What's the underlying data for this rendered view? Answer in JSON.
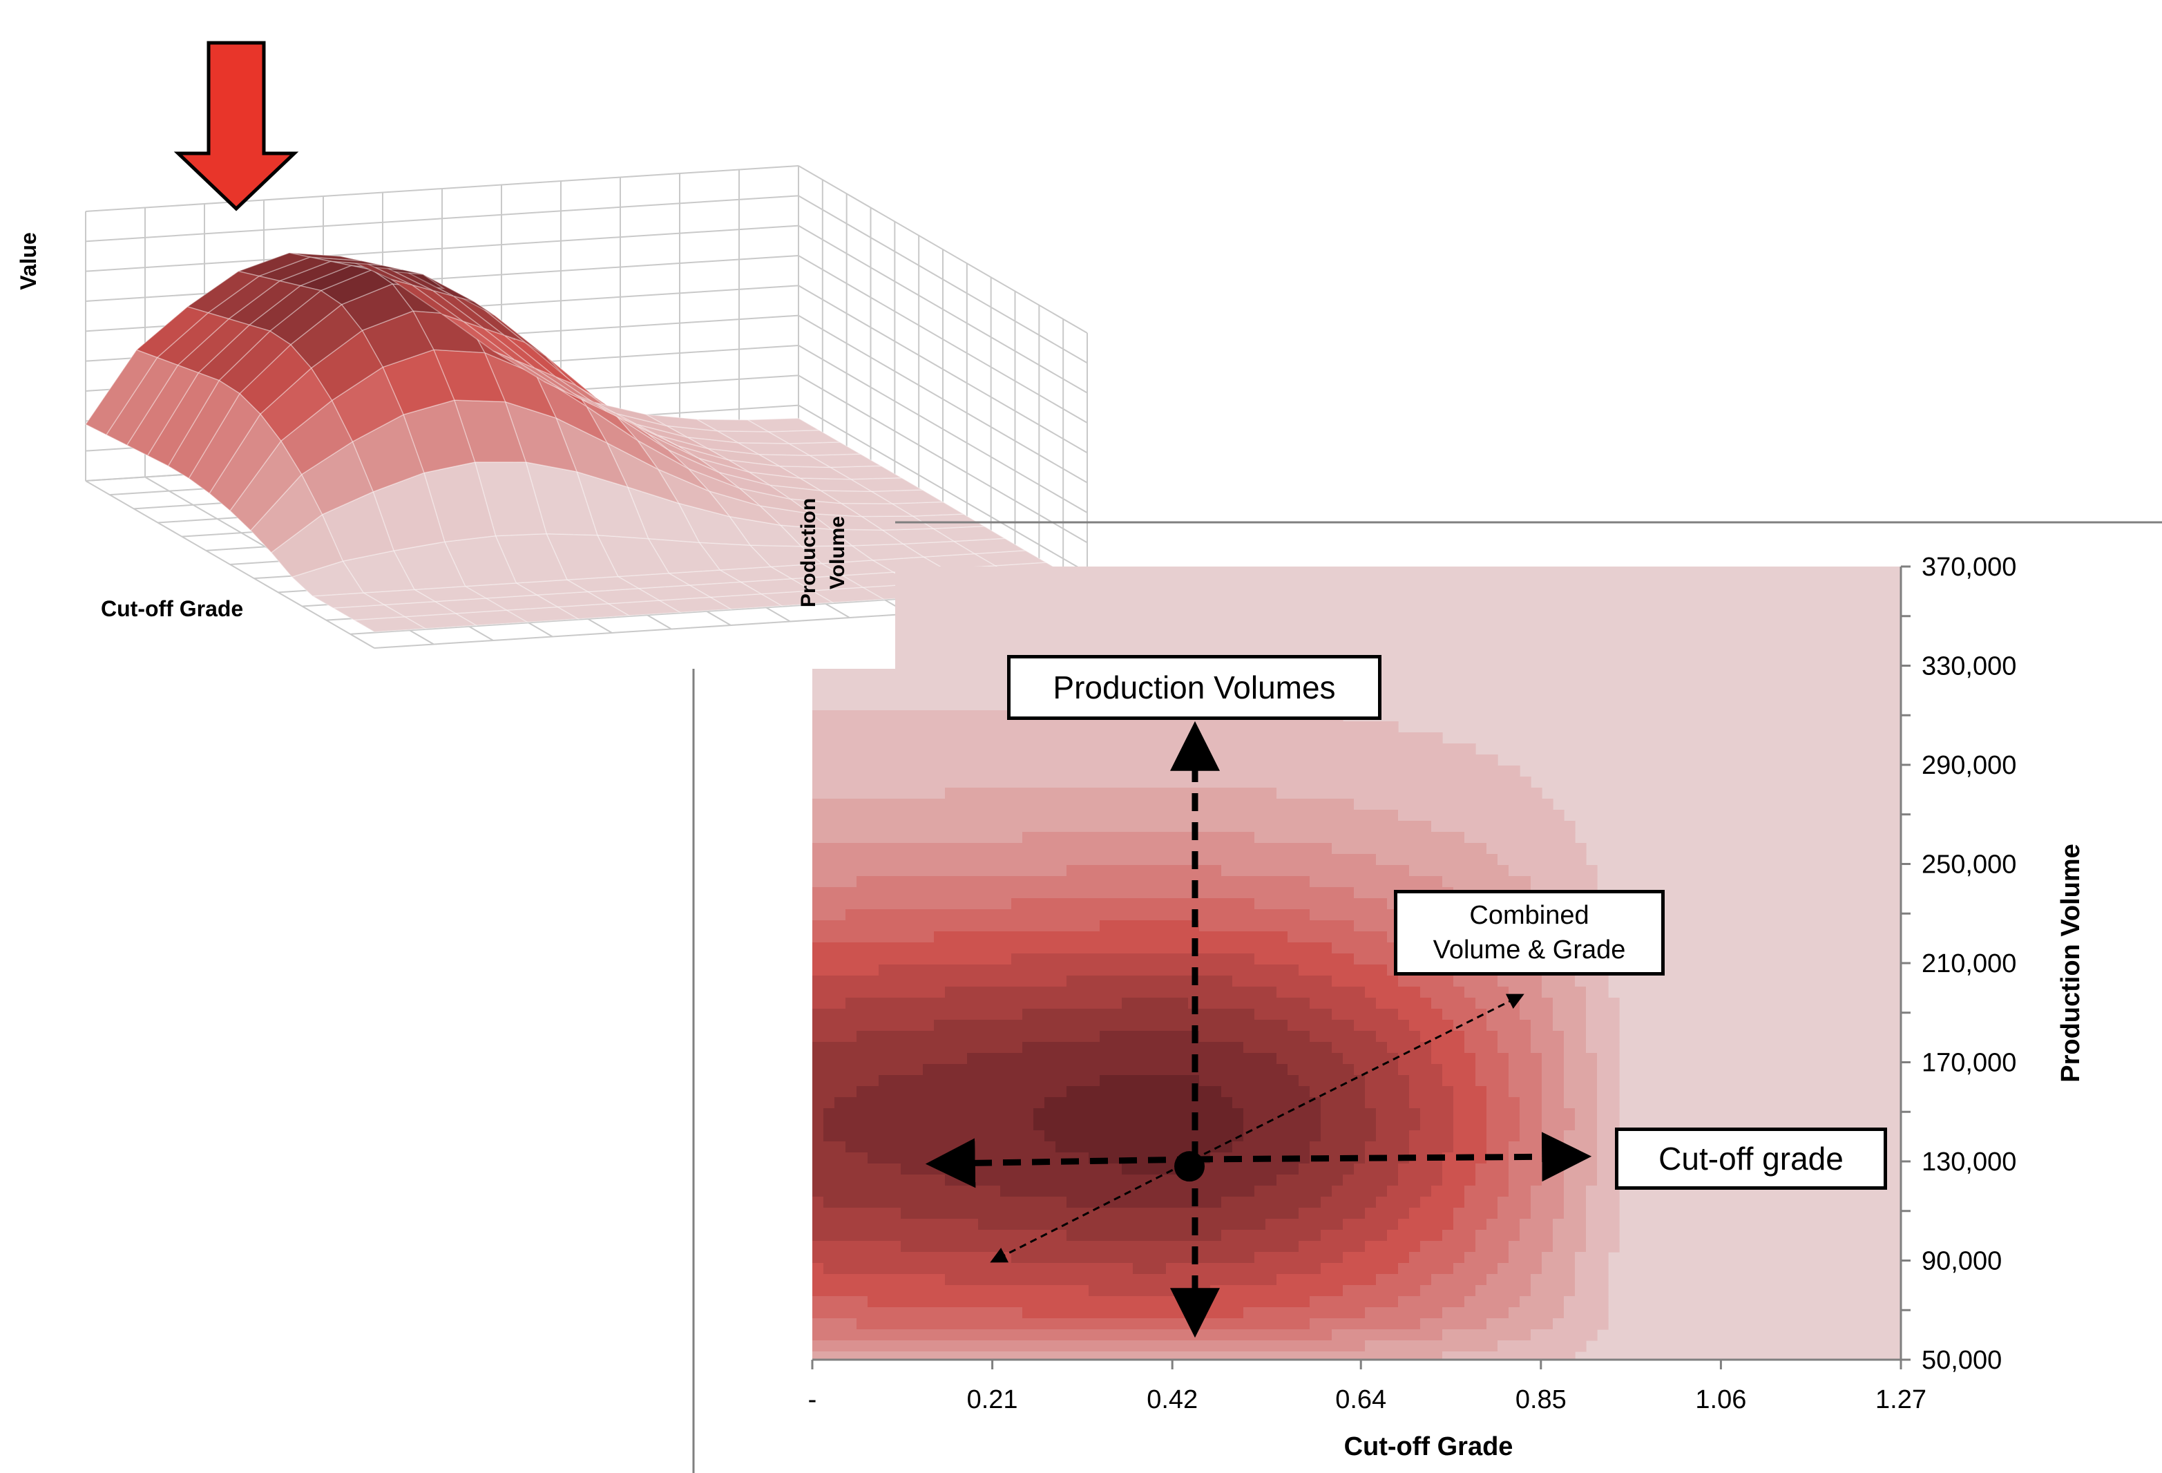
{
  "colors": {
    "surface_dark": "#6a2428",
    "surface_light": "#e7cfd0",
    "arrow_red": "#e8352a",
    "axis_gray": "#7f7f7f"
  },
  "surface_chart": {
    "z_label": "Value",
    "x_label": "Cut-off Grade",
    "y_label_line1": "Production",
    "y_label_line2": "Volume"
  },
  "chart_data": [
    {
      "type": "surface",
      "zlabel": "Value",
      "xlabel": "Cut-off Grade",
      "ylabel": "Production Volume",
      "note_marker": "red arrow marking the peak of the surface",
      "grid": true
    },
    {
      "type": "heatmap",
      "xlabel": "Cut-off Grade",
      "ylabel": "Production Volume",
      "x_ticks": [
        "-",
        "0.21",
        "0.42",
        "0.64",
        "0.85",
        "1.06",
        "1.27"
      ],
      "x_values": [
        0,
        0.21,
        0.42,
        0.64,
        0.85,
        1.06,
        1.27
      ],
      "y_ticks": [
        "50,000",
        "90,000",
        "130,000",
        "170,000",
        "210,000",
        "250,000",
        "290,000",
        "330,000",
        "370,000"
      ],
      "y_values": [
        50000,
        90000,
        130000,
        170000,
        210000,
        250000,
        290000,
        330000,
        370000
      ],
      "xlim": [
        0,
        1.27
      ],
      "ylim": [
        50000,
        370000
      ],
      "optimum_point": {
        "x": 0.44,
        "y": 128000
      },
      "annotations": {
        "production_volumes": "Production Volumes",
        "cutoff_grade": "Cut-off grade",
        "combined_line1": "Combined",
        "combined_line2": "Volume & Grade"
      },
      "grid": false
    }
  ]
}
